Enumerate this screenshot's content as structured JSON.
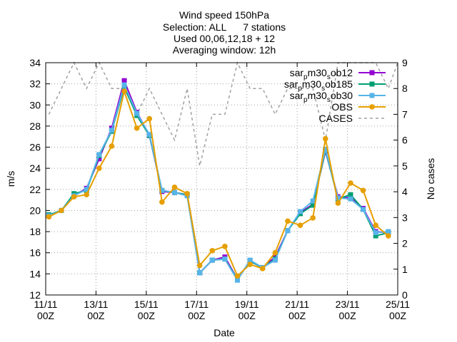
{
  "chart_data": {
    "type": "line",
    "title_lines": [
      "Wind speed 150hPa",
      "Selection: ALL      7 stations",
      "Used 00,06,12,18 + 12",
      "Averaging window: 12h"
    ],
    "xlabel": "Date",
    "ylabel": "m/s",
    "y2label": "No cases",
    "x_range": [
      0,
      14
    ],
    "ylim": [
      12,
      34
    ],
    "y2lim": [
      0,
      9
    ],
    "y_ticks": [
      12,
      14,
      16,
      18,
      20,
      22,
      24,
      26,
      28,
      30,
      32,
      34
    ],
    "y2_ticks": [
      0,
      1,
      2,
      3,
      4,
      5,
      6,
      7,
      8,
      9
    ],
    "x_ticks": [
      {
        "x": 0,
        "line1": "11/11",
        "line2": "00Z"
      },
      {
        "x": 2,
        "line1": "13/11",
        "line2": "00Z"
      },
      {
        "x": 4,
        "line1": "15/11",
        "line2": "00Z"
      },
      {
        "x": 6,
        "line1": "17/11",
        "line2": "00Z"
      },
      {
        "x": 8,
        "line1": "19/11",
        "line2": "00Z"
      },
      {
        "x": 10,
        "line1": "21/11",
        "line2": "00Z"
      },
      {
        "x": 12,
        "line1": "23/11",
        "line2": "00Z"
      },
      {
        "x": 14,
        "line1": "25/11",
        "line2": "00Z"
      }
    ],
    "x": [
      0.125,
      0.625,
      1.125,
      1.625,
      2.125,
      2.625,
      3.125,
      3.625,
      4.125,
      4.625,
      5.125,
      5.625,
      6.125,
      6.625,
      7.125,
      7.625,
      8.125,
      8.625,
      9.125,
      9.625,
      10.125,
      10.625,
      11.125,
      11.625,
      12.125,
      12.625,
      13.125,
      13.625,
      14.125
    ],
    "series": [
      {
        "name": "sar_pm30_sob12",
        "legend_main": "sar",
        "legend_parts": [
          [
            "p",
            "m30"
          ],
          [
            "s",
            "ob12"
          ]
        ],
        "color": "#9400d3",
        "marker": "square",
        "axis": "y",
        "values": [
          19.5,
          20.0,
          21.4,
          22.1,
          24.9,
          27.8,
          32.3,
          29.3,
          27.1,
          21.8,
          21.7,
          21.5,
          14.1,
          15.3,
          15.6,
          13.5,
          15.2,
          14.6,
          15.6,
          18.1,
          19.8,
          20.6,
          25.6,
          21.3,
          21.2,
          20.2,
          18.0,
          17.9,
          null
        ]
      },
      {
        "name": "sar_pm30_sob185",
        "legend_main": "sar",
        "legend_parts": [
          [
            "p",
            "m30"
          ],
          [
            "s",
            "ob185"
          ]
        ],
        "color": "#009e73",
        "marker": "square",
        "axis": "y",
        "values": [
          19.6,
          20.0,
          21.6,
          21.9,
          25.2,
          27.5,
          31.7,
          29.0,
          27.1,
          21.9,
          21.7,
          21.5,
          14.1,
          15.3,
          15.4,
          13.5,
          15.2,
          14.6,
          15.4,
          18.1,
          19.7,
          20.5,
          25.7,
          21.1,
          21.5,
          20.1,
          17.6,
          17.9,
          null
        ]
      },
      {
        "name": "sar_pm30_sob30",
        "legend_main": "sar",
        "legend_parts": [
          [
            "p",
            "m30"
          ],
          [
            "s",
            "ob30"
          ]
        ],
        "color": "#56b4e9",
        "marker": "square",
        "axis": "y",
        "values": [
          19.5,
          20.0,
          21.4,
          22.0,
          25.3,
          27.6,
          31.9,
          29.2,
          27.2,
          21.9,
          21.7,
          21.4,
          14.1,
          15.3,
          15.4,
          13.4,
          15.3,
          14.6,
          15.3,
          18.1,
          19.9,
          20.9,
          25.8,
          21.2,
          21.1,
          20.1,
          17.9,
          18.0,
          null
        ]
      },
      {
        "name": "OBS",
        "legend_main": "OBS",
        "legend_parts": [],
        "color": "#e69f00",
        "marker": "circle",
        "axis": "y",
        "values": [
          19.4,
          20.0,
          21.3,
          21.5,
          24.0,
          26.1,
          31.3,
          27.8,
          28.7,
          20.8,
          22.2,
          21.6,
          14.8,
          16.2,
          16.6,
          13.8,
          14.9,
          14.5,
          16.0,
          19.0,
          18.6,
          19.3,
          26.8,
          20.7,
          22.6,
          21.9,
          18.6,
          17.6,
          null
        ]
      },
      {
        "name": "CASES",
        "legend_main": "CASES",
        "legend_parts": [],
        "color": "#a0a0a0",
        "marker": "none",
        "dashed": true,
        "axis": "y2",
        "values": [
          7,
          8,
          9,
          8,
          9,
          8,
          8,
          7,
          8,
          7,
          6,
          8,
          5,
          7,
          7,
          9,
          8,
          8,
          7,
          8,
          8,
          8,
          6,
          9,
          9,
          9,
          9,
          8,
          9
        ]
      }
    ],
    "grid": true,
    "legend_position": "top-right"
  }
}
